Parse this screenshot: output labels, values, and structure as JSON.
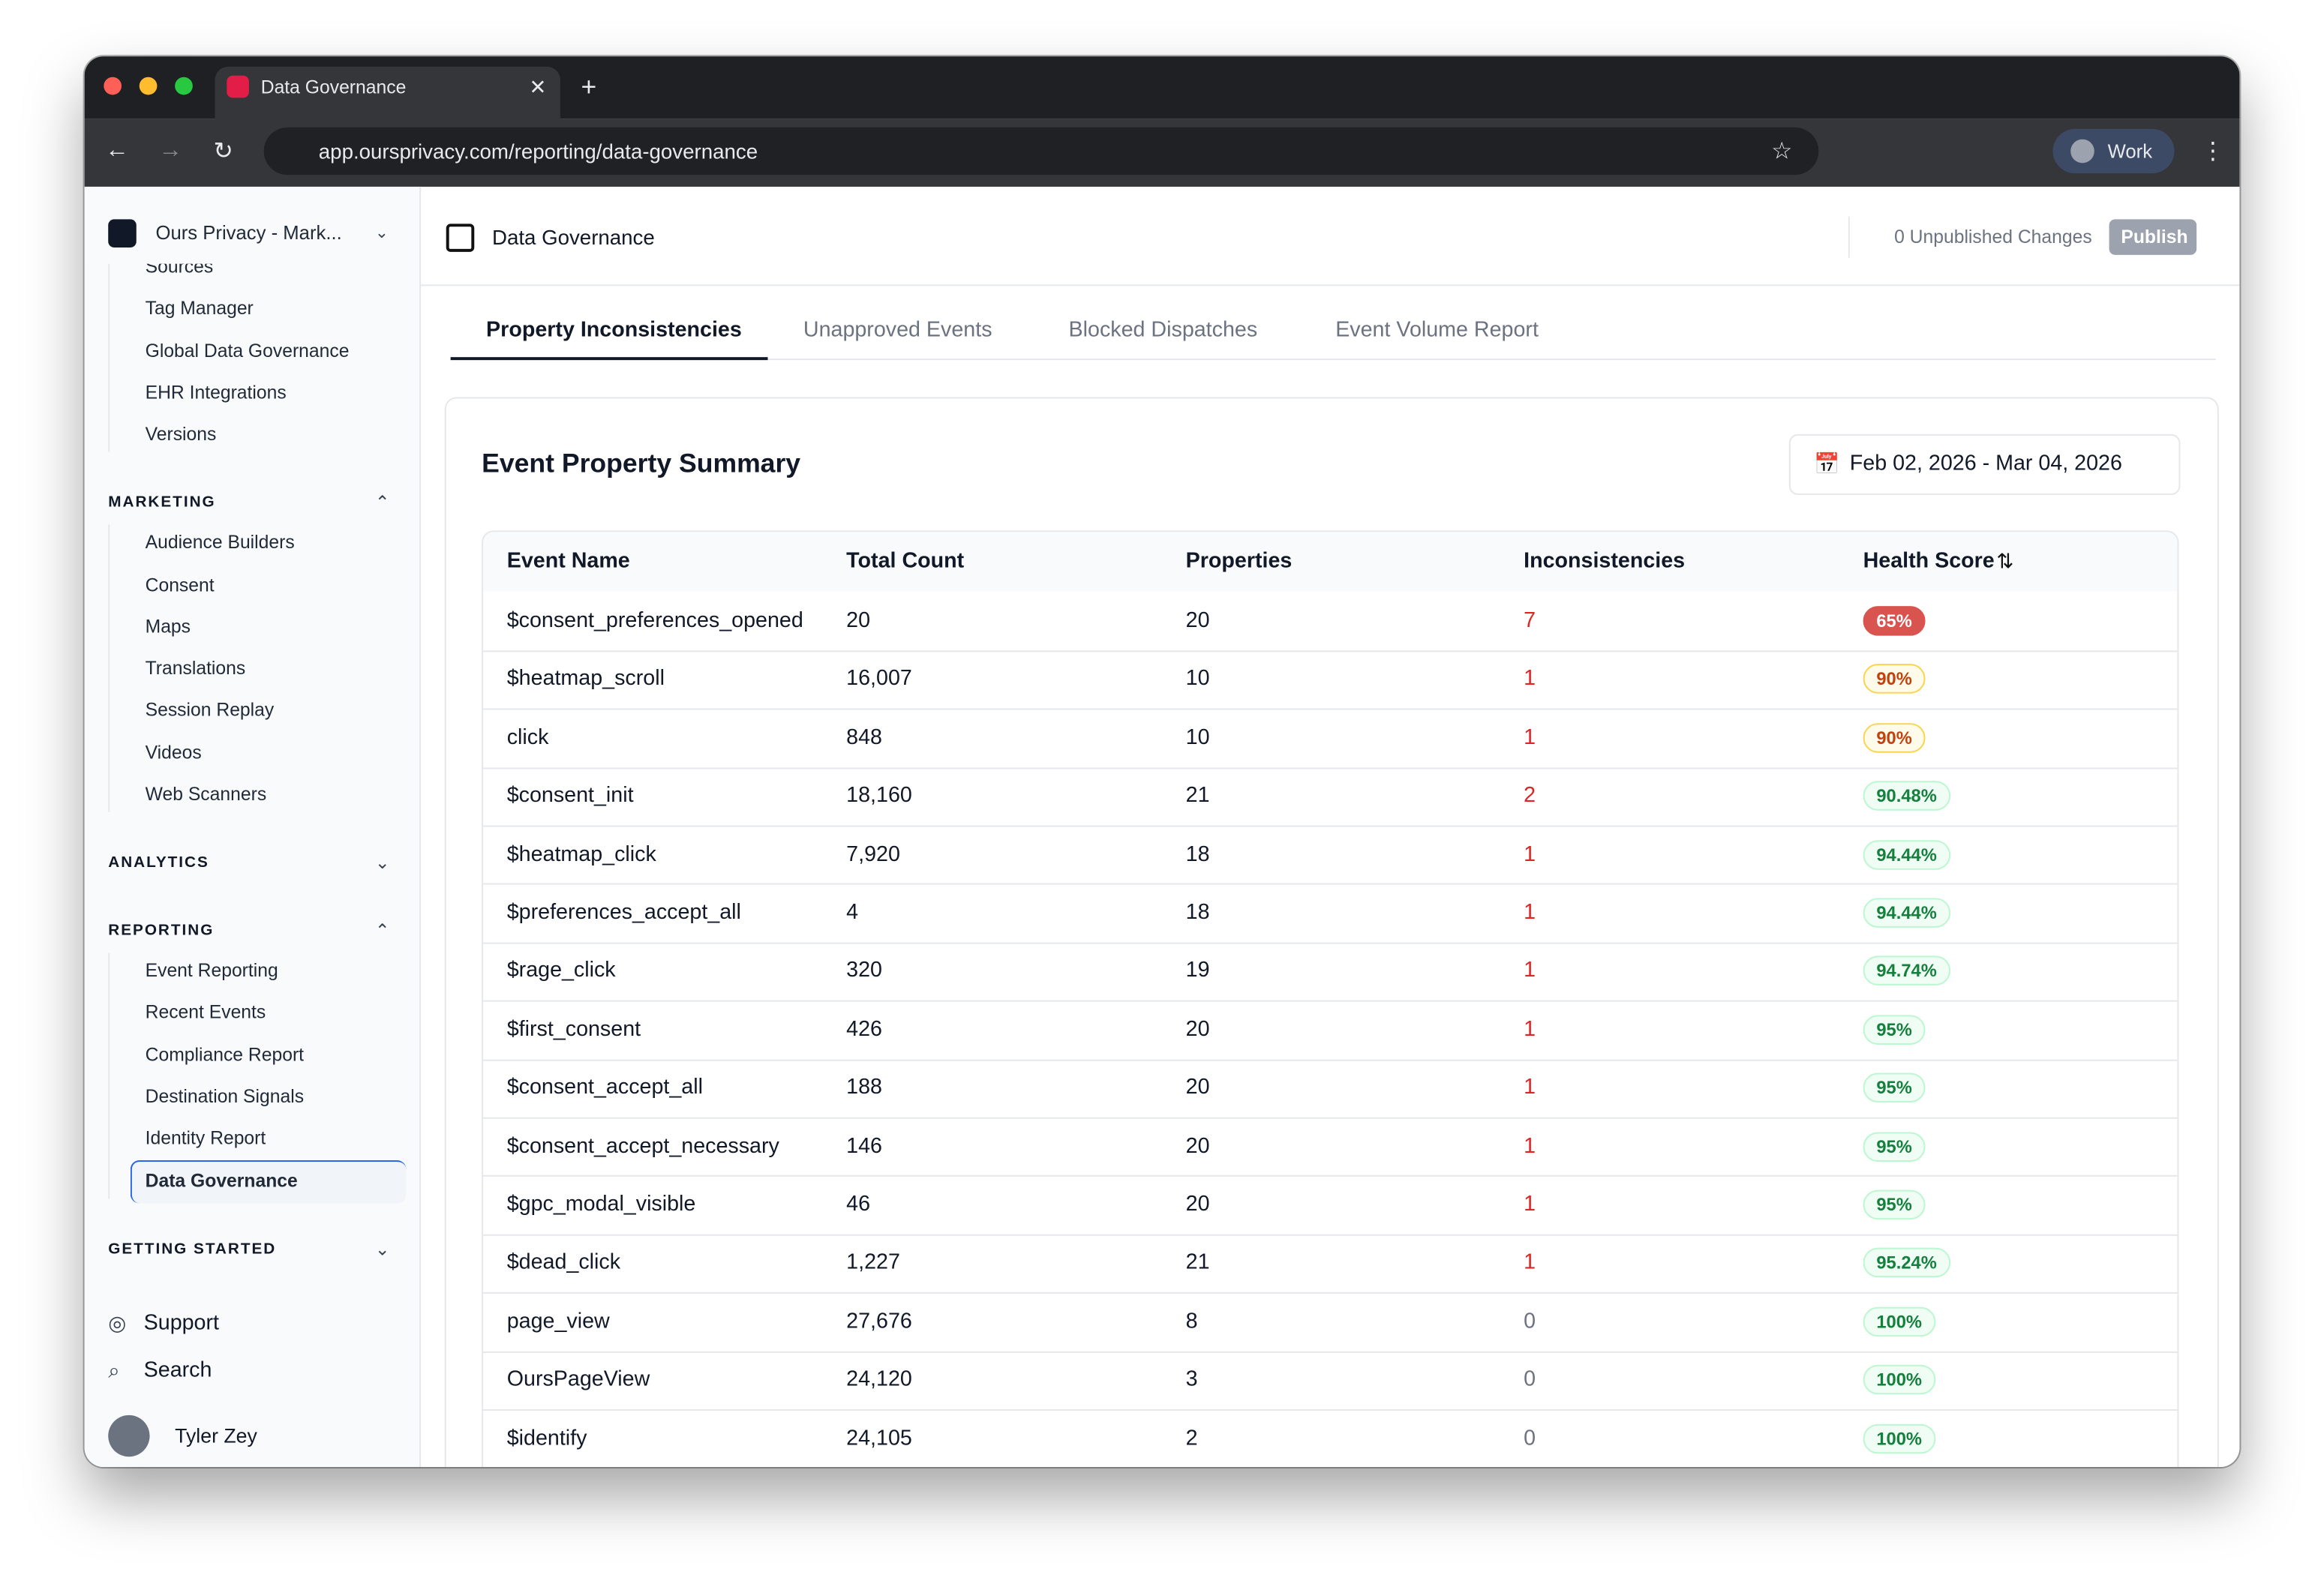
{
  "browser": {
    "tab_title": "Data Governance",
    "url": "app.oursprivacy.com/reporting/data-governance",
    "profile": "Work"
  },
  "sidebar": {
    "workspace": "Ours Privacy - Mark...",
    "top_items": [
      "Sources",
      "Tag Manager",
      "Global Data Governance",
      "EHR Integrations",
      "Versions"
    ],
    "sections": [
      {
        "title": "MARKETING",
        "expanded": true,
        "items": [
          "Audience Builders",
          "Consent",
          "Maps",
          "Translations",
          "Session Replay",
          "Videos",
          "Web Scanners"
        ]
      },
      {
        "title": "ANALYTICS",
        "expanded": false,
        "items": []
      },
      {
        "title": "REPORTING",
        "expanded": true,
        "items": [
          "Event Reporting",
          "Recent Events",
          "Compliance Report",
          "Destination Signals",
          "Identity Report",
          "Data Governance"
        ],
        "active_index": 5
      },
      {
        "title": "GETTING STARTED",
        "expanded": false,
        "items": []
      }
    ],
    "footer_links": [
      "Support",
      "Search"
    ],
    "user": "Tyler Zey"
  },
  "header": {
    "title": "Data Governance",
    "unpublished": "0 Unpublished Changes",
    "publish": "Publish"
  },
  "tabs": {
    "items": [
      "Property Inconsistencies",
      "Unapproved Events",
      "Blocked Dispatches",
      "Event Volume Report"
    ],
    "active_index": 0
  },
  "card": {
    "title": "Event Property Summary",
    "date_range": "Feb 02, 2026 - Mar 04, 2026"
  },
  "table": {
    "columns": [
      "Event Name",
      "Total Count",
      "Properties",
      "Inconsistencies",
      "Health Score"
    ],
    "rows": [
      [
        "$consent_preferences_opened",
        "20",
        "20",
        "7",
        "65%"
      ],
      [
        "$heatmap_scroll",
        "16,007",
        "10",
        "1",
        "90%"
      ],
      [
        "click",
        "848",
        "10",
        "1",
        "90%"
      ],
      [
        "$consent_init",
        "18,160",
        "21",
        "2",
        "90.48%"
      ],
      [
        "$heatmap_click",
        "7,920",
        "18",
        "1",
        "94.44%"
      ],
      [
        "$preferences_accept_all",
        "4",
        "18",
        "1",
        "94.44%"
      ],
      [
        "$rage_click",
        "320",
        "19",
        "1",
        "94.74%"
      ],
      [
        "$first_consent",
        "426",
        "20",
        "1",
        "95%"
      ],
      [
        "$consent_accept_all",
        "188",
        "20",
        "1",
        "95%"
      ],
      [
        "$consent_accept_necessary",
        "146",
        "20",
        "1",
        "95%"
      ],
      [
        "$gpc_modal_visible",
        "46",
        "20",
        "1",
        "95%"
      ],
      [
        "$dead_click",
        "1,227",
        "21",
        "1",
        "95.24%"
      ],
      [
        "page_view",
        "27,676",
        "8",
        "0",
        "100%"
      ],
      [
        "OursPageView",
        "24,120",
        "3",
        "0",
        "100%"
      ],
      [
        "$identify",
        "24,105",
        "2",
        "0",
        "100%"
      ]
    ]
  }
}
